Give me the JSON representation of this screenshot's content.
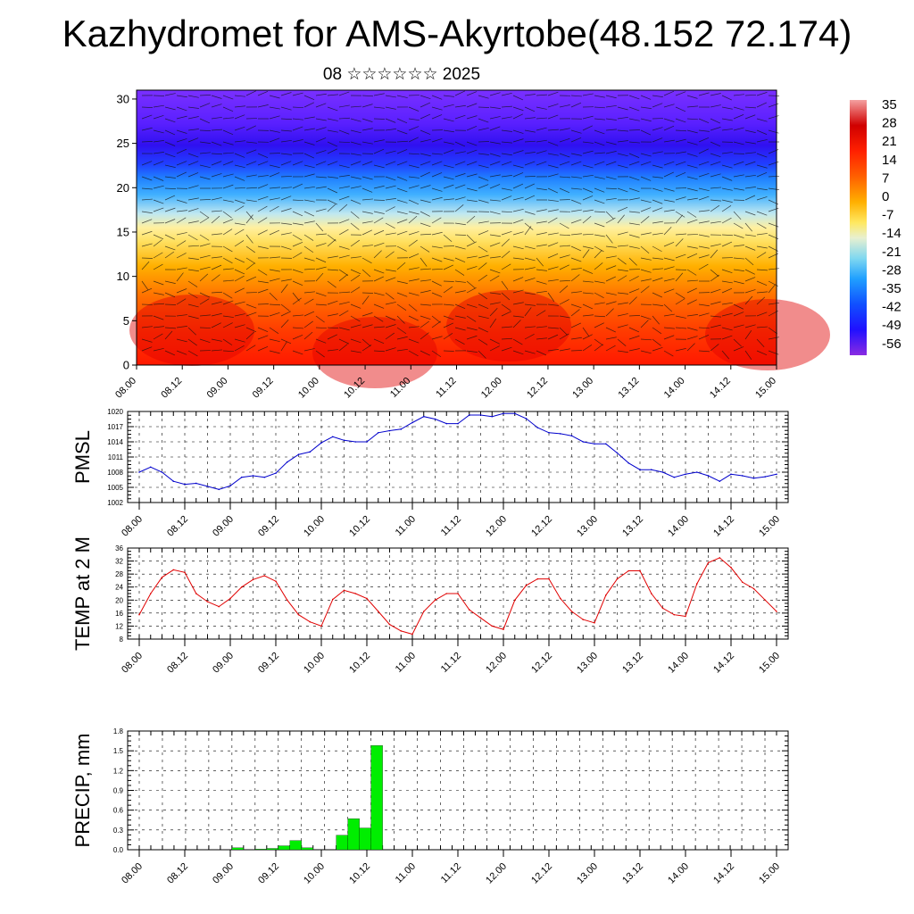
{
  "header": {
    "title": "Kazhydromet for AMS-Akyrtobe(48.152 72.174)",
    "subtitle": "08 ☆☆☆☆☆☆ 2025"
  },
  "colors": {
    "pmsl_line": "#0000cc",
    "temp_line": "#e00000",
    "precip_bar": "#00ee00",
    "precip_bar_edge": "#000000"
  },
  "chart_data": [
    {
      "type": "heatmap",
      "name": "vertical-section",
      "x_tick_labels": [
        "08.00",
        "08.12",
        "09.00",
        "09.12",
        "10.00",
        "10.12",
        "11.00",
        "11.12",
        "12.00",
        "12.12",
        "13.00",
        "13.12",
        "14.00",
        "14.12",
        "15.00"
      ],
      "y_ticks": [
        0,
        5,
        10,
        15,
        20,
        25,
        30
      ],
      "ylim": [
        0,
        31
      ],
      "colorbar_labels": [
        "35",
        "28",
        "21",
        "14",
        "7",
        "0",
        "-7",
        "-14",
        "-21",
        "-28",
        "-35",
        "-42",
        "-49",
        "-56"
      ],
      "colorbar_range": [
        -63,
        42
      ],
      "description_visible": "temperature shading with wind barbs, warm (red) near surface, cold (purple) at 22-30"
    },
    {
      "type": "line",
      "name": "pmsl",
      "ylabel": "PMSL",
      "ylim": [
        1002,
        1020
      ],
      "y_ticks": [
        1002,
        1005,
        1008,
        1011,
        1014,
        1017,
        1020
      ],
      "x_tick_labels": [
        "08.00",
        "08.12",
        "09.00",
        "09.12",
        "10.00",
        "10.12",
        "11.00",
        "11.12",
        "12.00",
        "12.12",
        "13.00",
        "13.12",
        "14.00",
        "14.12",
        "15.00"
      ],
      "values": [
        1008.0,
        1009.0,
        1008.0,
        1006.2,
        1005.6,
        1005.8,
        1005.2,
        1004.6,
        1005.3,
        1007.0,
        1007.3,
        1007.0,
        1007.8,
        1010.0,
        1011.5,
        1012.0,
        1013.8,
        1015.0,
        1014.3,
        1014.0,
        1014.0,
        1015.8,
        1016.2,
        1016.5,
        1017.8,
        1019.0,
        1018.5,
        1017.6,
        1017.6,
        1019.3,
        1019.3,
        1019.0,
        1019.6,
        1019.6,
        1018.6,
        1016.8,
        1015.8,
        1015.6,
        1015.2,
        1014.0,
        1013.6,
        1013.6,
        1011.8,
        1009.8,
        1008.5,
        1008.5,
        1008.0,
        1007.0,
        1007.6,
        1008.0,
        1007.3,
        1006.2,
        1007.6,
        1007.3,
        1006.8,
        1007.1,
        1007.6
      ]
    },
    {
      "type": "line",
      "name": "temp",
      "ylabel": "TEMP at 2 M",
      "ylim": [
        8,
        36
      ],
      "y_ticks": [
        8,
        12,
        16,
        20,
        24,
        28,
        32,
        36
      ],
      "x_tick_labels": [
        "08.00",
        "08.12",
        "09.00",
        "09.12",
        "10.00",
        "10.12",
        "11.00",
        "11.12",
        "12.00",
        "12.12",
        "13.00",
        "13.12",
        "14.00",
        "14.12",
        "15.00"
      ],
      "values": [
        15.5,
        22.0,
        27.0,
        29.3,
        28.5,
        22.0,
        19.5,
        18.0,
        20.5,
        24.0,
        26.3,
        27.5,
        25.8,
        20.0,
        15.5,
        13.3,
        12.0,
        20.2,
        23.0,
        22.0,
        20.5,
        16.5,
        12.5,
        10.5,
        9.5,
        16.5,
        20.0,
        22.0,
        22.0,
        17.0,
        14.5,
        12.0,
        11.0,
        20.0,
        24.5,
        26.5,
        26.5,
        20.5,
        16.5,
        14.0,
        13.0,
        21.5,
        26.5,
        29.0,
        29.0,
        22.0,
        17.5,
        15.5,
        15.0,
        25.0,
        31.5,
        33.0,
        30.0,
        25.5,
        23.5,
        20.0,
        16.5
      ]
    },
    {
      "type": "bar",
      "name": "precip",
      "ylabel": "PRECIP, mm",
      "ylim": [
        0,
        1.8
      ],
      "y_ticks": [
        "0.0",
        "0.3",
        "0.6",
        "0.9",
        "1.2",
        "1.5",
        "1.8"
      ],
      "x_tick_labels": [
        "08.00",
        "08.12",
        "09.00",
        "09.12",
        "10.00",
        "10.12",
        "11.00",
        "11.12",
        "12.00",
        "12.12",
        "13.00",
        "13.12",
        "14.00",
        "14.12",
        "15.00"
      ],
      "values": [
        0,
        0,
        0,
        0,
        0,
        0,
        0,
        0,
        0.03,
        0,
        0.01,
        0.02,
        0.06,
        0.14,
        0.03,
        0,
        0,
        0.22,
        0.47,
        0.33,
        1.58,
        0,
        0,
        0,
        0,
        0,
        0,
        0,
        0,
        0,
        0,
        0,
        0,
        0,
        0,
        0,
        0,
        0,
        0,
        0,
        0,
        0,
        0,
        0,
        0,
        0,
        0,
        0,
        0,
        0,
        0,
        0,
        0,
        0,
        0,
        0
      ]
    }
  ]
}
